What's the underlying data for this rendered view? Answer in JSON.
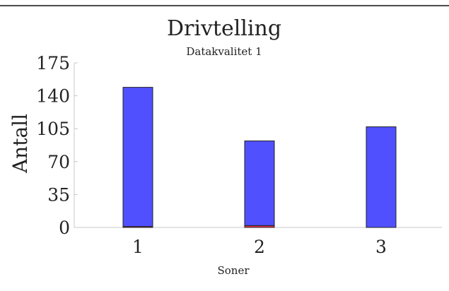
{
  "chart_data": {
    "type": "bar",
    "title": "Drivtelling",
    "subtitle": "Datakvalitet 1",
    "xlabel": "Soner",
    "ylabel": "Antall",
    "categories": [
      "1",
      "2",
      "3"
    ],
    "yticks": [
      "0",
      "35",
      "70",
      "105",
      "140",
      "175"
    ],
    "ylim": [
      0,
      175
    ],
    "series": [
      {
        "values": [
          1,
          2,
          0
        ],
        "color": "#e0314b"
      },
      {
        "values": [
          148,
          90,
          107
        ],
        "color": "#5050ff"
      }
    ],
    "stacked": true,
    "grid": false
  }
}
